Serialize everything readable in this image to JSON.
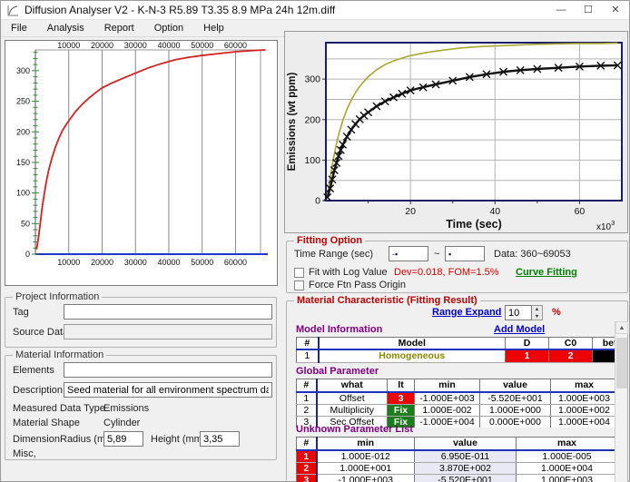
{
  "window": {
    "title": "Diffusion Analyser V2 - K-N-3 R5.89 T3.35 8.9 MPa 24h 12m.diff",
    "controls": {
      "minimize": "—",
      "maximize": "☐",
      "close": "✕"
    }
  },
  "menu": {
    "items": [
      {
        "label": "File"
      },
      {
        "label": "Analysis"
      },
      {
        "label": "Report"
      },
      {
        "label": "Option"
      },
      {
        "label": "Help"
      }
    ]
  },
  "project_info": {
    "title": "Project Information",
    "tag_label": "Tag",
    "tag_value": "",
    "source_label": "Source Data",
    "source_value": ""
  },
  "material_info": {
    "title": "Material Information",
    "elements_label": "Elements",
    "elements_value": "",
    "description_label": "Description",
    "description_value": "Seed material for all environment spectrum data, this is ju",
    "measured_type_label": "Measured Data Type",
    "measured_type_value": "Emissions",
    "shape_label": "Material Shape",
    "shape_value": "Cylinder",
    "dimension_label": "Dimension",
    "radius_label": "Radius (mm)",
    "radius_value": "5,89",
    "height_label": "Height (mm)",
    "height_value": "3,35",
    "misc_label": "Misc,"
  },
  "fitting_option": {
    "title": "Fitting Option",
    "time_range_label": "Time Range (sec)",
    "from_value": "-▪",
    "to_value": "▪",
    "separator": "~",
    "data_info": "Data: 360~69053",
    "fit_log_label": "Fit with Log Value",
    "dev_fom": "Dev=0.018,  FOM=1.5%",
    "curve_fitting_label": "Curve Fitting",
    "force_origin_label": "Force Ftn Pass Origin"
  },
  "material_characteristic": {
    "title": "Material Characteristic (Fitting Result)",
    "range_expand_label": "Range Expand",
    "range_expand_value": "10",
    "percent": "%",
    "model_info": {
      "heading": "Model Information",
      "add_model": "Add Model",
      "headers": [
        "#",
        "Model",
        "D",
        "C0",
        "beta"
      ],
      "row": {
        "num": "1",
        "model": "Homogeneous",
        "d": "1",
        "c0": "2",
        "beta": ""
      }
    },
    "global_parameter": {
      "heading": "Global Parameter",
      "headers": [
        "#",
        "what",
        "It",
        "min",
        "value",
        "max"
      ],
      "rows": [
        {
          "num": "1",
          "what": "Offset",
          "it": "3",
          "min": "-1.000E+003",
          "value": "-5.520E+001",
          "max": "1.000E+003"
        },
        {
          "num": "2",
          "what": "Multiplicity",
          "it": "Fix",
          "min": "1.000E-002",
          "value": "1.000E+000",
          "max": "1.000E+002"
        },
        {
          "num": "3",
          "what": "Sec Offset",
          "it": "Fix",
          "min": "-1.000E+004",
          "value": "0.000E+000",
          "max": "1.000E+004"
        }
      ]
    },
    "unknown_parameters": {
      "heading": "Unknown Parameter List",
      "headers": [
        "#",
        "min",
        "value",
        "max"
      ],
      "rows": [
        {
          "num": "1",
          "min": "1.000E-012",
          "value": "6.950E-011",
          "max": "1.000E-005"
        },
        {
          "num": "2",
          "min": "1.000E+001",
          "value": "3.870E+002",
          "max": "1.000E+004"
        },
        {
          "num": "3",
          "min": "-1.000E+003",
          "value": "-5.520E+001",
          "max": "1.000E+003"
        }
      ]
    }
  },
  "colors": {
    "fit_curve": "#a8a832",
    "measured_curve": "#111111",
    "left_curve": "#d42222",
    "heading_red": "#c00000",
    "heading_purple": "#800080",
    "link_blue": "#0000cc",
    "link_green": "#008000",
    "cell_red": "#ee0000",
    "cell_green": "#1d7d1d",
    "value_col_bg": "#e9e9f6",
    "axis_blue": "#2335cc",
    "tick_green": "#2d8c2d"
  },
  "chart_data": [
    {
      "type": "line",
      "title": "",
      "xlabel": "",
      "ylabel": "",
      "xlim": [
        0,
        67500
      ],
      "ylim": [
        0,
        334
      ],
      "x_ticks": [
        10000,
        20000,
        30000,
        40000,
        50000,
        60000
      ],
      "y_ticks": [
        0,
        50,
        100,
        150,
        200,
        250,
        300
      ],
      "grid": true,
      "legend": "none",
      "series": [
        {
          "name": "measured-emissions",
          "color": "#d42222",
          "x": [
            360,
            1000,
            1500,
            2000,
            2500,
            3000,
            3500,
            4000,
            5000,
            6000,
            7000,
            8000,
            9000,
            10000,
            12000,
            14000,
            16000,
            18000,
            20000,
            23000,
            26000,
            30000,
            34000,
            38000,
            42000,
            46000,
            50000,
            55000,
            60000,
            65000,
            69000
          ],
          "y": [
            8,
            30,
            52,
            75,
            93,
            110,
            125,
            138,
            158,
            175,
            189,
            201,
            210,
            218,
            233,
            245,
            255,
            264,
            272,
            280,
            287,
            296,
            305,
            312,
            318,
            322,
            325,
            328,
            331,
            333,
            334
          ]
        }
      ]
    },
    {
      "type": "line",
      "title": "",
      "xlabel": "Time (sec)",
      "ylabel": "Emissions (wt ppm)",
      "x_scale": {
        "base": "x10",
        "exp": "3"
      },
      "xlim": [
        0,
        70
      ],
      "ylim": [
        0,
        390
      ],
      "x_ticks": [
        20,
        40,
        60
      ],
      "x_minor_ticks": [
        10,
        30,
        50
      ],
      "y_ticks": [
        0,
        100,
        200,
        300
      ],
      "grid": true,
      "legend": "none",
      "series": [
        {
          "name": "homogeneous-fit",
          "color": "#a8a832",
          "marker": "none",
          "x": [
            0.36,
            1,
            1.5,
            2,
            2.5,
            3,
            4,
            5,
            6,
            7,
            8,
            10,
            12,
            14,
            16,
            18,
            20,
            24,
            28,
            32,
            36,
            40,
            45,
            50,
            55,
            60,
            65,
            69
          ],
          "y": [
            15,
            55,
            88,
            115,
            140,
            162,
            198,
            226,
            248,
            267,
            282,
            306,
            323,
            336,
            345,
            352,
            358,
            366,
            372,
            377,
            380,
            382,
            384,
            386,
            387,
            388,
            388,
            389
          ]
        },
        {
          "name": "measured-data",
          "color": "#111111",
          "marker": "x",
          "x": [
            0.36,
            1,
            1.5,
            2,
            2.5,
            3,
            3.5,
            4,
            5,
            6,
            7,
            8,
            9,
            10,
            12,
            14,
            16,
            18,
            20,
            23,
            26,
            30,
            34,
            38,
            42,
            46,
            50,
            55,
            60,
            65,
            69
          ],
          "y": [
            8,
            30,
            52,
            75,
            93,
            110,
            125,
            138,
            158,
            175,
            189,
            201,
            210,
            218,
            233,
            245,
            255,
            264,
            272,
            280,
            287,
            296,
            305,
            312,
            318,
            322,
            325,
            328,
            331,
            333,
            334
          ]
        }
      ]
    }
  ]
}
